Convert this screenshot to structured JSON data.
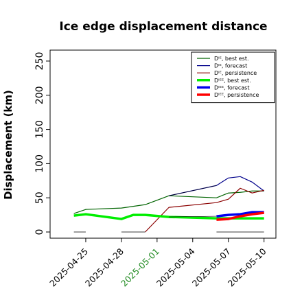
{
  "chart_data": {
    "type": "line",
    "title": "Ice edge displacement distance",
    "xlabel": "",
    "ylabel": "Displacement (km)",
    "ylim": [
      0,
      260
    ],
    "yticks": [
      0,
      50,
      100,
      150,
      200,
      250
    ],
    "xticks": [
      {
        "label": "2025-04-25",
        "color": "#000000"
      },
      {
        "label": "2025-04-28",
        "color": "#000000"
      },
      {
        "label": "2025-05-01",
        "color": "#228B22"
      },
      {
        "label": "2025-05-04",
        "color": "#000000"
      },
      {
        "label": "2025-05-07",
        "color": "#000000"
      },
      {
        "label": "2025-05-10",
        "color": "#000000"
      }
    ],
    "xlim": [
      "2025-04-22",
      "2025-05-11"
    ],
    "legend_position": "top-right",
    "series": [
      {
        "name": "Dᴵᴱ, best est.",
        "color": "#006400",
        "width": 1.2,
        "points": [
          [
            "2025-04-24",
            27
          ],
          [
            "2025-04-25",
            33
          ],
          [
            "2025-04-28",
            35
          ],
          [
            "2025-04-30",
            40
          ],
          [
            "2025-05-02",
            53
          ],
          [
            "2025-05-06",
            50
          ],
          [
            "2025-05-07",
            57
          ],
          [
            "2025-05-08",
            58
          ],
          [
            "2025-05-09",
            60
          ],
          [
            "2025-05-10",
            60
          ]
        ]
      },
      {
        "name": "Dᴵᴱ, forecast",
        "color": "#00008B",
        "width": 1.2,
        "points": [
          [
            "2025-05-02",
            53
          ],
          [
            "2025-05-06",
            68
          ],
          [
            "2025-05-07",
            79
          ],
          [
            "2025-05-08",
            81
          ],
          [
            "2025-05-09",
            73
          ],
          [
            "2025-05-10",
            60
          ]
        ]
      },
      {
        "name": "Dᴵᴱ, persistence",
        "color": "#8B0000",
        "width": 1.2,
        "points": [
          [
            "2025-04-30",
            0
          ],
          [
            "2025-05-02",
            36
          ],
          [
            "2025-05-06",
            43
          ],
          [
            "2025-05-07",
            48
          ],
          [
            "2025-05-08",
            64
          ],
          [
            "2025-05-09",
            57
          ],
          [
            "2025-05-10",
            61
          ]
        ]
      },
      {
        "name": "Dᴵᴱᴱ, best est.",
        "color": "#00EE00",
        "width": 3.5,
        "points": [
          [
            "2025-04-24",
            24
          ],
          [
            "2025-04-25",
            26
          ],
          [
            "2025-04-28",
            19
          ],
          [
            "2025-04-29",
            25
          ],
          [
            "2025-04-30",
            25
          ],
          [
            "2025-05-02",
            22
          ],
          [
            "2025-05-06",
            20
          ],
          [
            "2025-05-07",
            20
          ],
          [
            "2025-05-08",
            20
          ],
          [
            "2025-05-09",
            20
          ],
          [
            "2025-05-10",
            20
          ]
        ]
      },
      {
        "name": "Dᴵᴱᴱ, forecast",
        "color": "#0000EE",
        "width": 3.5,
        "points": [
          [
            "2025-05-06",
            23
          ],
          [
            "2025-05-07",
            25
          ],
          [
            "2025-05-08",
            26
          ],
          [
            "2025-05-09",
            29
          ],
          [
            "2025-05-10",
            29
          ]
        ]
      },
      {
        "name": "Dᴵᴱᴱ, persistence",
        "color": "#FF0000",
        "width": 3.5,
        "points": [
          [
            "2025-05-06",
            18
          ],
          [
            "2025-05-07",
            19
          ],
          [
            "2025-05-08",
            23
          ],
          [
            "2025-05-09",
            26
          ],
          [
            "2025-05-10",
            28
          ]
        ]
      },
      {
        "name": "",
        "color": "#7f7f7f",
        "width": 1.5,
        "legend": false,
        "segments": [
          [
            [
              "2025-04-24",
              0
            ],
            [
              "2025-04-25",
              0
            ]
          ],
          [
            [
              "2025-04-28",
              0
            ],
            [
              "2025-04-30",
              0
            ]
          ],
          [
            [
              "2025-05-06",
              0
            ],
            [
              "2025-05-10",
              0
            ]
          ]
        ]
      },
      {
        "name": "",
        "color": "#000000",
        "width": 0.6,
        "legend": false,
        "points": [
          [
            "2025-05-02",
            53
          ],
          [
            "2025-05-06",
            68
          ]
        ]
      },
      {
        "name": "",
        "color": "#000000",
        "width": 0.6,
        "legend": false,
        "points": [
          [
            "2025-05-02",
            22
          ],
          [
            "2025-05-06",
            23
          ]
        ]
      }
    ]
  }
}
